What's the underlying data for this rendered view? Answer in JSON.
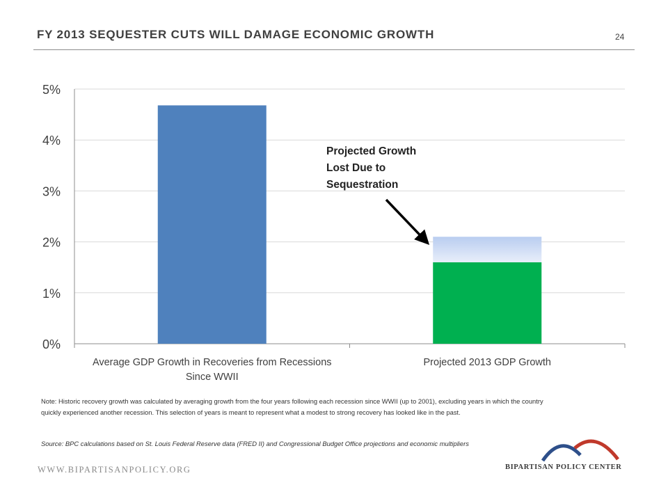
{
  "header": {
    "title": "FY 2013 SEQUESTER CUTS WILL DAMAGE ECONOMIC GROWTH",
    "page_number": "24"
  },
  "chart_data": {
    "type": "bar",
    "categories": [
      "Average GDP Growth in Recoveries from Recessions Since WWII",
      "Projected 2013 GDP Growth"
    ],
    "series": [
      {
        "values": [
          4.68,
          1.6
        ],
        "color": "#4f81bd"
      },
      {
        "values": [
          0,
          0.5
        ],
        "color": "#b9cdf0"
      }
    ],
    "bar_colors": [
      "#4f81bd",
      "#00b050"
    ],
    "ylim": [
      0,
      5
    ],
    "yticks": [
      0,
      1,
      2,
      3,
      4,
      5
    ],
    "ytick_labels": [
      "0%",
      "1%",
      "2%",
      "3%",
      "4%",
      "5%"
    ],
    "grid": true,
    "annotation": {
      "lines": [
        "Projected Growth",
        "Lost Due to",
        "Sequestration"
      ],
      "target_category": 1,
      "target_value": 1.9
    }
  },
  "footnotes": {
    "note": "Note: Historic recovery growth was calculated by averaging growth from the four years following each recession since WWII (up to 2001), excluding years in which the country quickly experienced another recession. This selection of years is meant to represent what a modest to strong recovery has looked like in the past.",
    "source": "Source: BPC calculations based on St. Louis Federal Reserve data (FRED II) and Congressional Budget Office projections and economic multipliers"
  },
  "footer": {
    "url": "WWW.BIPARTISANPOLICY.ORG",
    "org_name": "BIPARTISAN POLICY CENTER",
    "logo_icon": "bpc-arches-logo",
    "logo_colors": [
      "#2e4f8a",
      "#c0392b"
    ]
  }
}
